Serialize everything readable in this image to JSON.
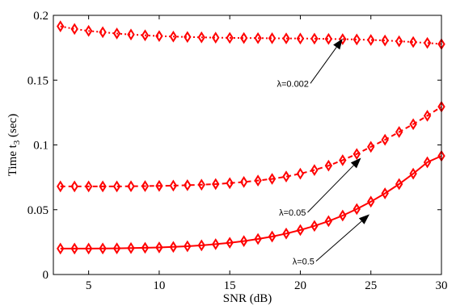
{
  "chart_data": {
    "type": "line",
    "xlabel": "SNR (dB)",
    "ylabel_main": "Time t",
    "ylabel_sub": "3",
    "ylabel_tail": " (sec)",
    "xlim": [
      2.5,
      30
    ],
    "ylim": [
      0,
      0.2
    ],
    "x_ticks": [
      5,
      10,
      15,
      20,
      25,
      30
    ],
    "y_ticks": [
      0,
      0.05,
      0.1,
      0.15,
      0.2
    ],
    "y_tick_labels": [
      "0",
      "0.05",
      "0.1",
      "0.15",
      "0.2"
    ],
    "grid": false,
    "line_color": "#ff0000",
    "marker": "diamond",
    "x": [
      3,
      4,
      5,
      6,
      7,
      8,
      9,
      10,
      11,
      12,
      13,
      14,
      15,
      16,
      17,
      18,
      19,
      20,
      21,
      22,
      23,
      24,
      25,
      26,
      27,
      28,
      29,
      30
    ],
    "series": [
      {
        "line_style": "dotted",
        "values": [
          0.1915,
          0.1895,
          0.188,
          0.187,
          0.186,
          0.1852,
          0.1846,
          0.184,
          0.1836,
          0.1833,
          0.183,
          0.1828,
          0.1826,
          0.1825,
          0.1824,
          0.1823,
          0.1822,
          0.1821,
          0.182,
          0.1818,
          0.1816,
          0.1814,
          0.181,
          0.1806,
          0.18,
          0.1794,
          0.1787,
          0.1778
        ]
      },
      {
        "line_style": "dashed",
        "values": [
          0.068,
          0.068,
          0.068,
          0.068,
          0.068,
          0.0681,
          0.0682,
          0.0684,
          0.0686,
          0.0689,
          0.0693,
          0.0698,
          0.0705,
          0.0714,
          0.0725,
          0.0738,
          0.0756,
          0.0778,
          0.0806,
          0.084,
          0.0882,
          0.093,
          0.0985,
          0.104,
          0.11,
          0.116,
          0.1225,
          0.1295
        ]
      },
      {
        "line_style": "solid",
        "values": [
          0.02,
          0.02,
          0.02,
          0.0201,
          0.0202,
          0.0204,
          0.0206,
          0.0209,
          0.0213,
          0.0218,
          0.0225,
          0.0234,
          0.0245,
          0.0258,
          0.0274,
          0.0293,
          0.0316,
          0.0343,
          0.0375,
          0.0412,
          0.0455,
          0.0505,
          0.0562,
          0.0626,
          0.0698,
          0.0778,
          0.0866,
          0.0915
        ]
      }
    ],
    "annotations": [
      {
        "text": "λ=0.002",
        "text_xy": [
          20.6,
          0.145
        ],
        "arrow_to": [
          23.0,
          0.182
        ]
      },
      {
        "text": "λ=0.05",
        "text_xy": [
          20.4,
          0.0455
        ],
        "arrow_to": [
          24.3,
          0.09
        ]
      },
      {
        "text": "λ=0.5",
        "text_xy": [
          21.0,
          0.0078
        ],
        "arrow_to": [
          24.9,
          0.0465
        ]
      }
    ]
  }
}
